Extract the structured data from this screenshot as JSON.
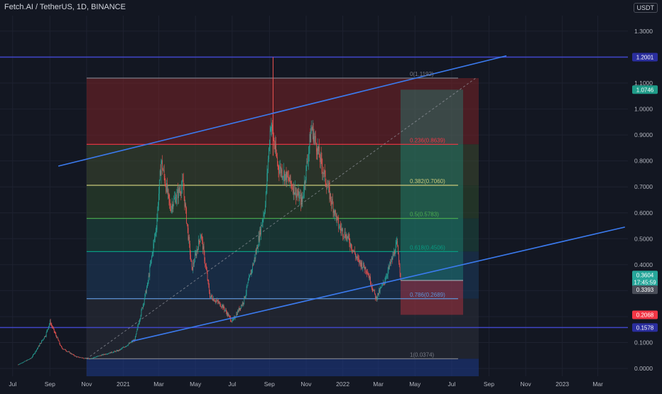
{
  "header": {
    "symbol_title": "Fetch.AI / TetherUS, 1D, BINANCE",
    "currency": "USDT"
  },
  "colors": {
    "background": "#131722",
    "grid": "#1e2230",
    "axis_text": "#b2b5be",
    "trendline": "#3b7bf0",
    "resistance_line": "#3f45c4",
    "candle_up": "#26a69a",
    "candle_down": "#ef5350",
    "price_tag_current": "#26a69a",
    "price_tag_target": "#1f9c89",
    "price_tag_stop": "#f23645",
    "price_tag_resistance": "#2a2e9e",
    "price_tag_neutral": "#4a4e59"
  },
  "chart_data": {
    "type": "candlestick",
    "title": "Fetch.AI / TetherUS, 1D, BINANCE",
    "y_axis": {
      "ticks": [
        1.3,
        1.2,
        1.1,
        1.0,
        0.9,
        0.8,
        0.7,
        0.6,
        0.5,
        0.4,
        0.3,
        0.2,
        0.1,
        0.0
      ],
      "tick_labels": [
        "1.3000",
        "1.2000",
        "1.1000",
        "1.0000",
        "0.9000",
        "0.8000",
        "0.7000",
        "0.6000",
        "0.5000",
        "0.4000",
        "0.3000",
        "0.2000",
        "0.1000",
        "0.0000"
      ],
      "range": [
        -0.03,
        1.36
      ]
    },
    "x_axis": {
      "tick_labels": [
        "Jul",
        "Sep",
        "Nov",
        "2021",
        "Mar",
        "May",
        "Jul",
        "Sep",
        "Nov",
        "2022",
        "Mar",
        "May",
        "Jul",
        "Sep",
        "Nov",
        "2023",
        "Mar"
      ]
    },
    "price_series": [
      {
        "date": "2020-07-10",
        "price": 0.015
      },
      {
        "date": "2020-08-01",
        "price": 0.04
      },
      {
        "date": "2020-08-25",
        "price": 0.13
      },
      {
        "date": "2020-09-01",
        "price": 0.18
      },
      {
        "date": "2020-09-20",
        "price": 0.08
      },
      {
        "date": "2020-10-15",
        "price": 0.045
      },
      {
        "date": "2020-11-05",
        "price": 0.037
      },
      {
        "date": "2020-12-01",
        "price": 0.055
      },
      {
        "date": "2020-12-25",
        "price": 0.07
      },
      {
        "date": "2021-01-20",
        "price": 0.11
      },
      {
        "date": "2021-02-10",
        "price": 0.32
      },
      {
        "date": "2021-02-25",
        "price": 0.55
      },
      {
        "date": "2021-03-05",
        "price": 0.8
      },
      {
        "date": "2021-03-20",
        "price": 0.62
      },
      {
        "date": "2021-04-10",
        "price": 0.71
      },
      {
        "date": "2021-04-25",
        "price": 0.38
      },
      {
        "date": "2021-05-10",
        "price": 0.52
      },
      {
        "date": "2021-05-25",
        "price": 0.28
      },
      {
        "date": "2021-06-15",
        "price": 0.24
      },
      {
        "date": "2021-07-01",
        "price": 0.18
      },
      {
        "date": "2021-07-20",
        "price": 0.26
      },
      {
        "date": "2021-08-10",
        "price": 0.45
      },
      {
        "date": "2021-08-25",
        "price": 0.63
      },
      {
        "date": "2021-09-03",
        "price": 0.95
      },
      {
        "date": "2021-09-15",
        "price": 0.78
      },
      {
        "date": "2021-10-05",
        "price": 0.72
      },
      {
        "date": "2021-10-25",
        "price": 0.64
      },
      {
        "date": "2021-11-10",
        "price": 0.93
      },
      {
        "date": "2021-11-25",
        "price": 0.8
      },
      {
        "date": "2021-12-10",
        "price": 0.67
      },
      {
        "date": "2021-12-25",
        "price": 0.55
      },
      {
        "date": "2022-01-10",
        "price": 0.5
      },
      {
        "date": "2022-01-25",
        "price": 0.42
      },
      {
        "date": "2022-02-10",
        "price": 0.38
      },
      {
        "date": "2022-02-25",
        "price": 0.27
      },
      {
        "date": "2022-03-10",
        "price": 0.33
      },
      {
        "date": "2022-03-25",
        "price": 0.43
      },
      {
        "date": "2022-04-01",
        "price": 0.48
      },
      {
        "date": "2022-04-07",
        "price": 0.3604
      }
    ],
    "extremes": {
      "high_spike": {
        "date": "2021-09-07",
        "price": 1.2001
      }
    },
    "fibonacci": {
      "levels": [
        {
          "ratio": "0",
          "price": 1.1192,
          "label": "0(1.1192)",
          "color": "#787b86"
        },
        {
          "ratio": "0.236",
          "price": 0.8639,
          "label": "0.236(0.8639)",
          "color": "#f23645"
        },
        {
          "ratio": "0.382",
          "price": 0.706,
          "label": "0.382(0.7060)",
          "color": "#c9c97a"
        },
        {
          "ratio": "0.5",
          "price": 0.5783,
          "label": "0.5(0.5783)",
          "color": "#4caf50"
        },
        {
          "ratio": "0.618",
          "price": 0.4506,
          "label": "0.618(0.4506)",
          "color": "#089981"
        },
        {
          "ratio": "0.786",
          "price": 0.2689,
          "label": "0.786(0.2689)",
          "color": "#5d93d6"
        },
        {
          "ratio": "1",
          "price": 0.0374,
          "label": "1(0.0374)",
          "color": "#787b86"
        }
      ],
      "zones": [
        {
          "from": 1.1192,
          "to": 0.8639,
          "color": "#7a2327"
        },
        {
          "from": 0.8639,
          "to": 0.706,
          "color": "#3e4a2f"
        },
        {
          "from": 0.706,
          "to": 0.5783,
          "color": "#2f4a2c"
        },
        {
          "from": 0.5783,
          "to": 0.4506,
          "color": "#1d4a40"
        },
        {
          "from": 0.4506,
          "to": 0.2689,
          "color": "#1d3d5e"
        },
        {
          "from": 0.2689,
          "to": 0.0374,
          "color": "#2c2f3a"
        },
        {
          "from": 0.0374,
          "to": -0.03,
          "color": "#1e3a8a"
        }
      ],
      "start_date": "2020-11-01",
      "end_date": "2022-08-15",
      "label_date": "2022-04-20"
    },
    "horizontal_lines": [
      {
        "price": 1.2001,
        "color": "#3f45c4"
      },
      {
        "price": 0.1578,
        "color": "#3f45c4"
      }
    ],
    "trend_channel": {
      "upper": {
        "from": {
          "date": "2020-09-15",
          "price": 0.78
        },
        "to": {
          "date": "2022-09-30",
          "price": 1.205
        }
      },
      "lower": {
        "from": {
          "date": "2021-01-15",
          "price": 0.105
        },
        "to": {
          "date": "2023-04-15",
          "price": 0.545
        }
      }
    },
    "position": {
      "type": "long",
      "entry": 0.3393,
      "target": 1.0746,
      "stop": 0.2068,
      "start_date": "2022-04-07",
      "end_date": "2022-07-20"
    },
    "fib_diagonal": {
      "from": {
        "date": "2020-11-01",
        "price": 0.0374
      },
      "to": {
        "date": "2022-08-10",
        "price": 1.1192
      }
    },
    "price_tags": [
      {
        "label": "1.2001",
        "price": 1.2001,
        "bg": "#2a2e9e",
        "fg": "#ffffff"
      },
      {
        "label": "1.0746",
        "price": 1.0746,
        "bg": "#1f9c89",
        "fg": "#ffffff"
      },
      {
        "label": "0.3604",
        "price": 0.3604,
        "bg": "#26a69a",
        "fg": "#ffffff"
      },
      {
        "label": "17:45:59",
        "price": 0.3322,
        "bg": "#26a69a",
        "fg": "#ffffff"
      },
      {
        "label": "0.3393",
        "price": 0.3035,
        "bg": "#4a4e59",
        "fg": "#ffffff"
      },
      {
        "label": "0.2068",
        "price": 0.2068,
        "bg": "#f23645",
        "fg": "#ffffff"
      },
      {
        "label": "0.1578",
        "price": 0.1578,
        "bg": "#2a2e9e",
        "fg": "#ffffff"
      }
    ],
    "grid": true,
    "legend": "none"
  }
}
